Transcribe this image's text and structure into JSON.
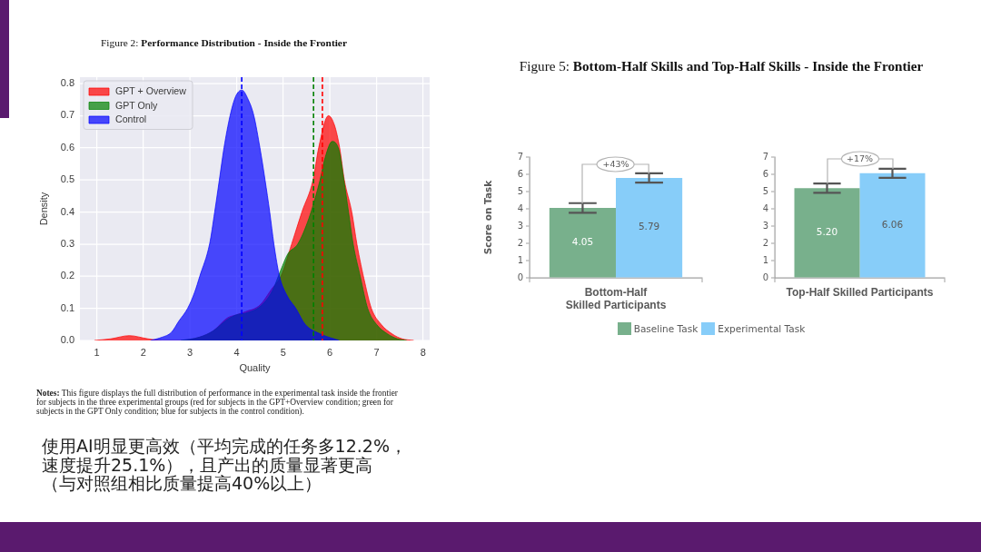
{
  "chart_data": [
    {
      "type": "area",
      "title": "Figure 2: Performance Distribution - Inside the Frontier",
      "xlabel": "Quality",
      "ylabel": "Density",
      "xlim": [
        0.64,
        8.14
      ],
      "xticks": [
        1,
        2,
        3,
        4,
        5,
        6,
        7,
        8
      ],
      "ylim": [
        0,
        0.82
      ],
      "yticks": [
        {
          "value": 0,
          "label": "0.0"
        },
        0.1,
        0.2,
        0.3,
        0.4,
        0.5,
        0.6,
        0.7,
        0.8
      ],
      "grid": true,
      "legend": "top left",
      "series": [
        {
          "name": "GPT + Overview",
          "color": "#ff0000",
          "x": [
            0.95,
            1.3,
            1.7,
            2.1,
            2.4,
            2.8,
            3.2,
            3.5,
            3.8,
            4.0,
            4.2,
            4.5,
            4.75,
            4.95,
            5.18,
            5.4,
            5.64,
            5.76,
            5.97,
            6.1,
            6.21,
            6.31,
            6.47,
            6.58,
            6.75,
            6.89,
            7.1,
            7.34,
            7.55,
            7.8
          ],
          "values": [
            0,
            0.005,
            0.015,
            0.005,
            0,
            0,
            0.01,
            0.03,
            0.07,
            0.08,
            0.09,
            0.11,
            0.16,
            0.2,
            0.3,
            0.4,
            0.5,
            0.6,
            0.7,
            0.67,
            0.6,
            0.5,
            0.4,
            0.3,
            0.18,
            0.1,
            0.05,
            0.02,
            0.005,
            0
          ]
        },
        {
          "name": "GPT Only",
          "color": "#008000",
          "x": [
            2.8,
            3.2,
            3.5,
            3.8,
            4.0,
            4.2,
            4.5,
            4.75,
            4.95,
            5.1,
            5.31,
            5.55,
            5.79,
            5.9,
            6.05,
            6.2,
            6.3,
            6.4,
            6.5,
            6.65,
            6.81,
            7.0,
            7.24,
            7.45,
            7.65
          ],
          "values": [
            0,
            0.01,
            0.03,
            0.065,
            0.08,
            0.085,
            0.105,
            0.15,
            0.22,
            0.27,
            0.3,
            0.38,
            0.5,
            0.57,
            0.62,
            0.59,
            0.5,
            0.4,
            0.3,
            0.2,
            0.1,
            0.05,
            0.02,
            0.005,
            0
          ]
        },
        {
          "name": "Control",
          "color": "#0000ff",
          "x": [
            2.15,
            2.4,
            2.6,
            2.76,
            2.95,
            3.1,
            3.21,
            3.42,
            3.53,
            3.63,
            3.73,
            3.86,
            3.98,
            4.11,
            4.25,
            4.37,
            4.5,
            4.61,
            4.71,
            4.8,
            4.92,
            5.08,
            5.27,
            5.47,
            5.8,
            6.2
          ],
          "values": [
            0,
            0.01,
            0.025,
            0.06,
            0.1,
            0.15,
            0.2,
            0.3,
            0.4,
            0.5,
            0.6,
            0.7,
            0.76,
            0.78,
            0.75,
            0.7,
            0.6,
            0.5,
            0.4,
            0.3,
            0.2,
            0.14,
            0.1,
            0.05,
            0.02,
            0
          ]
        }
      ],
      "ref_lines": [
        {
          "axis": "x",
          "value": 5.84,
          "color": "#ff0000",
          "line_style": "dashed"
        },
        {
          "axis": "x",
          "value": 5.65,
          "color": "#008000",
          "line_style": "dashed"
        },
        {
          "axis": "x",
          "value": 4.11,
          "color": "#0000ff",
          "line_style": "dashed"
        }
      ],
      "annotations": [
        "Notes: This figure displays the full distribution of performance in the experimental task inside the frontier for subjects in the three experimental groups (red for subjects in the GPT+Overview condition; green for subjects in the GPT Only condition; blue for subjects in the control condition).",
        "使用AI明显更高效（平均完成的任务多12.2%，速度提升25.1%），且产出的质量显著更高（与对照组相比质量提高40%以上）"
      ]
    },
    {
      "type": "bar",
      "title": "Figure 5: Bottom-Half Skills and Top-Half Skills - Inside the Frontier",
      "ylabel": "Score on Task",
      "categories": [
        "Bottom-Half\nSkilled Participants"
      ],
      "ylim": [
        0,
        7
      ],
      "yticks": [
        0,
        1,
        2,
        3,
        4,
        5,
        6,
        7
      ],
      "legend": "bottom",
      "series": [
        {
          "name": "Baseline Task",
          "color": "#78b08c",
          "values": [
            4.05
          ],
          "errors": [
            0.28
          ],
          "value_labels": [
            "4.05"
          ]
        },
        {
          "name": "Experimental Task",
          "color": "#87cdf9",
          "values": [
            5.79
          ],
          "errors": [
            0.27
          ],
          "value_labels": [
            "5.79"
          ]
        }
      ],
      "annotations": [
        {
          "text": "+43%",
          "y": 6.6
        }
      ]
    },
    {
      "type": "bar",
      "categories": [
        "Top-Half Skilled Participants"
      ],
      "ylim": [
        0,
        7
      ],
      "yticks": [
        0,
        1,
        2,
        3,
        4,
        5,
        6,
        7
      ],
      "legend": "bottom",
      "series": [
        {
          "name": "Baseline Task",
          "color": "#78b08c",
          "values": [
            5.2
          ],
          "errors": [
            0.27
          ],
          "value_labels": [
            "5.20"
          ]
        },
        {
          "name": "Experimental Task",
          "color": "#87cdf9",
          "values": [
            6.06
          ],
          "errors": [
            0.26
          ],
          "value_labels": [
            "6.06"
          ]
        }
      ],
      "annotations": [
        {
          "text": "+17%",
          "y": 6.9
        }
      ]
    }
  ]
}
